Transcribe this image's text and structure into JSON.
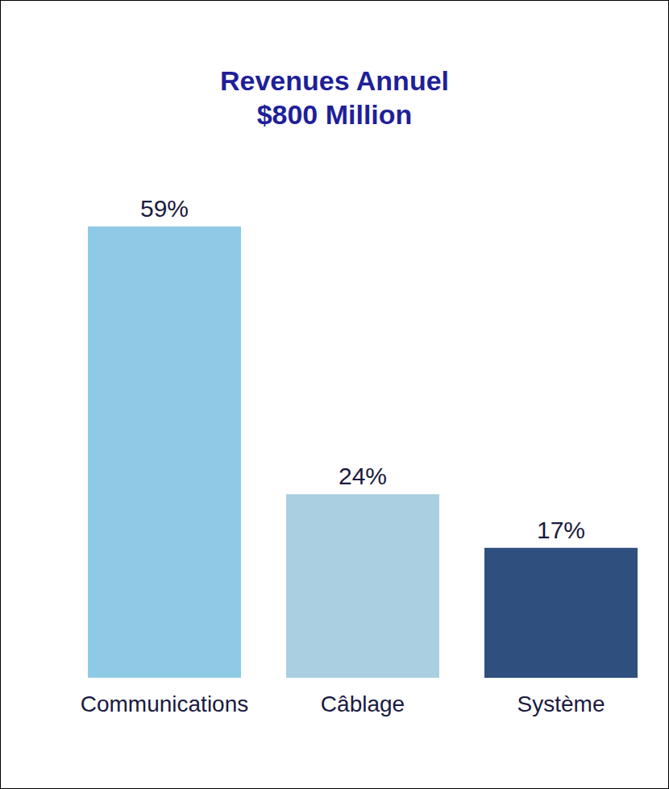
{
  "chart_data": {
    "type": "bar",
    "title": "Revenues Annuel",
    "subtitle": "$800 Million",
    "categories": [
      "Communications",
      "Câblage",
      "Système"
    ],
    "values": [
      59,
      24,
      17
    ],
    "value_labels": [
      "59%",
      "24%",
      "17%"
    ],
    "colors": [
      "#8ecae6",
      "#a9cfe0",
      "#2f4f7f"
    ],
    "data_labels": true,
    "tick_labels": "x",
    "grid": false
  }
}
